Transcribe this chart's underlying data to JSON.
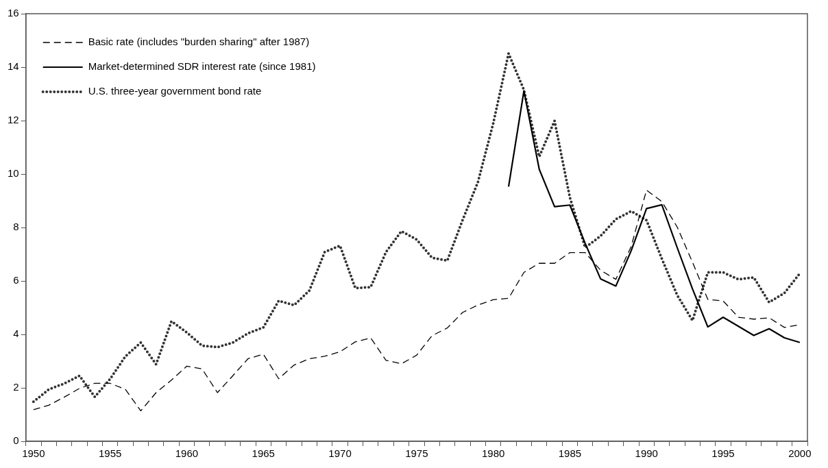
{
  "chart_data": {
    "type": "line",
    "categories": [
      "1950",
      null,
      null,
      null,
      null,
      "1955",
      null,
      null,
      null,
      null,
      "1960",
      null,
      null,
      null,
      null,
      "1965",
      null,
      null,
      null,
      null,
      "1970",
      null,
      null,
      null,
      null,
      "1975",
      null,
      null,
      null,
      null,
      "1980",
      null,
      null,
      null,
      null,
      "1985",
      null,
      null,
      null,
      null,
      "1990",
      null,
      null,
      null,
      null,
      "1995",
      null,
      null,
      null,
      null,
      "2000"
    ],
    "series": [
      {
        "name": "Basic rate (includes \"burden sharing\" after 1987)",
        "color": "#000000",
        "line_style": "dashed",
        "values": [
          1.18,
          1.35,
          1.65,
          1.98,
          2.17,
          2.17,
          1.94,
          1.14,
          1.82,
          2.29,
          2.81,
          2.71,
          1.82,
          2.45,
          3.09,
          3.26,
          2.34,
          2.85,
          3.09,
          3.18,
          3.35,
          3.72,
          3.87,
          3.03,
          2.9,
          3.22,
          3.95,
          4.24,
          4.82,
          5.1,
          5.3,
          5.35,
          6.32,
          6.66,
          6.66,
          7.06,
          7.06,
          6.4,
          6.06,
          7.29,
          9.4,
          8.97,
          8.02,
          6.7,
          5.31,
          5.25,
          4.64,
          4.57,
          4.62,
          4.26,
          4.36
        ]
      },
      {
        "name": "Market-determined SDR interest rate (since 1981)",
        "color": "#000000",
        "line_style": "solid",
        "values": [
          null,
          null,
          null,
          null,
          null,
          null,
          null,
          null,
          null,
          null,
          null,
          null,
          null,
          null,
          null,
          null,
          null,
          null,
          null,
          null,
          null,
          null,
          null,
          null,
          null,
          null,
          null,
          null,
          null,
          null,
          null,
          9.53,
          13.11,
          10.18,
          8.78,
          8.84,
          7.4,
          6.08,
          5.81,
          7.13,
          8.71,
          8.85,
          7.25,
          5.7,
          4.28,
          4.64,
          4.3,
          3.96,
          4.21,
          3.87,
          3.7
        ]
      },
      {
        "name": "U.S. three-year government bond rate",
        "color": "#333333",
        "line_style": "dotted",
        "values": [
          1.48,
          1.94,
          2.16,
          2.45,
          1.66,
          2.33,
          3.18,
          3.69,
          2.88,
          4.49,
          4.07,
          3.58,
          3.52,
          3.69,
          4.04,
          4.26,
          5.26,
          5.09,
          5.64,
          7.08,
          7.32,
          5.73,
          5.77,
          7.08,
          7.86,
          7.55,
          6.87,
          6.76,
          8.28,
          9.7,
          11.9,
          14.51,
          13.15,
          10.65,
          11.99,
          9.12,
          7.25,
          7.68,
          8.31,
          8.61,
          8.27,
          6.83,
          5.47,
          4.52,
          6.32,
          6.32,
          6.06,
          6.13,
          5.2,
          5.55,
          6.28
        ]
      }
    ],
    "ylim": [
      0,
      16
    ],
    "yticks": [
      0,
      2,
      4,
      6,
      8,
      10,
      12,
      14,
      16
    ],
    "grid": false,
    "legend": "top left",
    "marker": "none"
  }
}
